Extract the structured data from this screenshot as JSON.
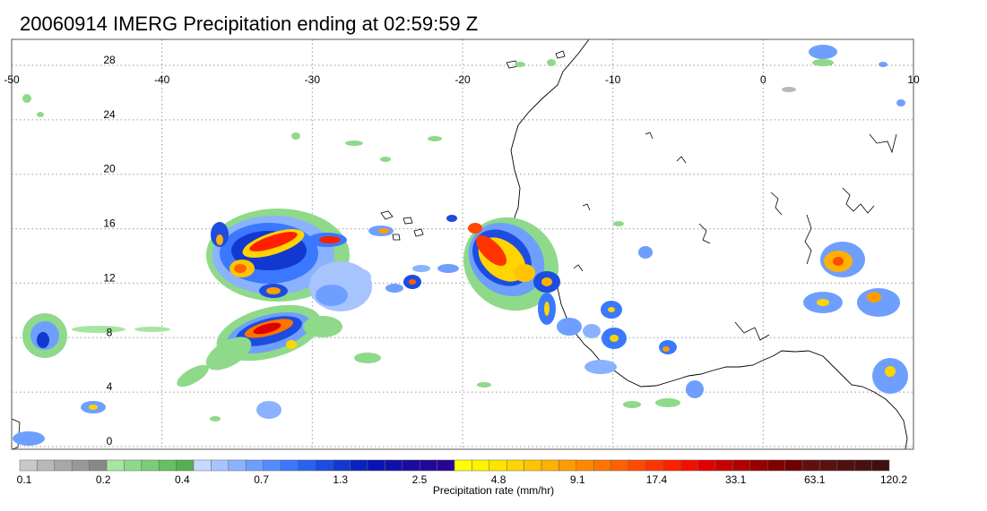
{
  "title": "20060914 IMERG Precipitation ending at 02:59:59 Z",
  "map": {
    "lon_range": [
      -50,
      10
    ],
    "lat_range": [
      -0.5,
      30
    ],
    "lon_ticks": [
      "-50",
      "-40",
      "-30",
      "-20",
      "-10",
      "0",
      "10"
    ],
    "lat_ticks": [
      "28",
      "24",
      "20",
      "16",
      "12",
      "8",
      "4",
      "0"
    ],
    "grid": "dotted"
  },
  "colorbar": {
    "label": "Precipitation rate (mm/hr)",
    "tick_labels": [
      "0.1",
      "0.2",
      "0.4",
      "0.7",
      "1.3",
      "2.5",
      "4.8",
      "9.1",
      "17.4",
      "33.1",
      "63.1",
      "120.2"
    ],
    "colors": [
      "#c8c8c8",
      "#b8b8b8",
      "#a8a8a8",
      "#989898",
      "#888888",
      "#a6e6a0",
      "#8fd98a",
      "#7acc76",
      "#66bf63",
      "#55b052",
      "#c8d8ff",
      "#a8c4ff",
      "#8ab2ff",
      "#6e9fff",
      "#548cff",
      "#3a78ff",
      "#2a62f0",
      "#1c4ce0",
      "#1238d0",
      "#0a22c0",
      "#0a14b4",
      "#1010a8",
      "#1a0c9c",
      "#20089a",
      "#280494",
      "#ffff00",
      "#fff200",
      "#ffe400",
      "#ffd400",
      "#ffc400",
      "#ffb000",
      "#ff9c00",
      "#ff8800",
      "#ff7400",
      "#ff6000",
      "#ff4a00",
      "#ff3400",
      "#ff2000",
      "#f01000",
      "#e00000",
      "#c80000",
      "#b00000",
      "#980000",
      "#800000",
      "#700000",
      "#601010",
      "#581010",
      "#501010",
      "#481010",
      "#401010"
    ]
  }
}
